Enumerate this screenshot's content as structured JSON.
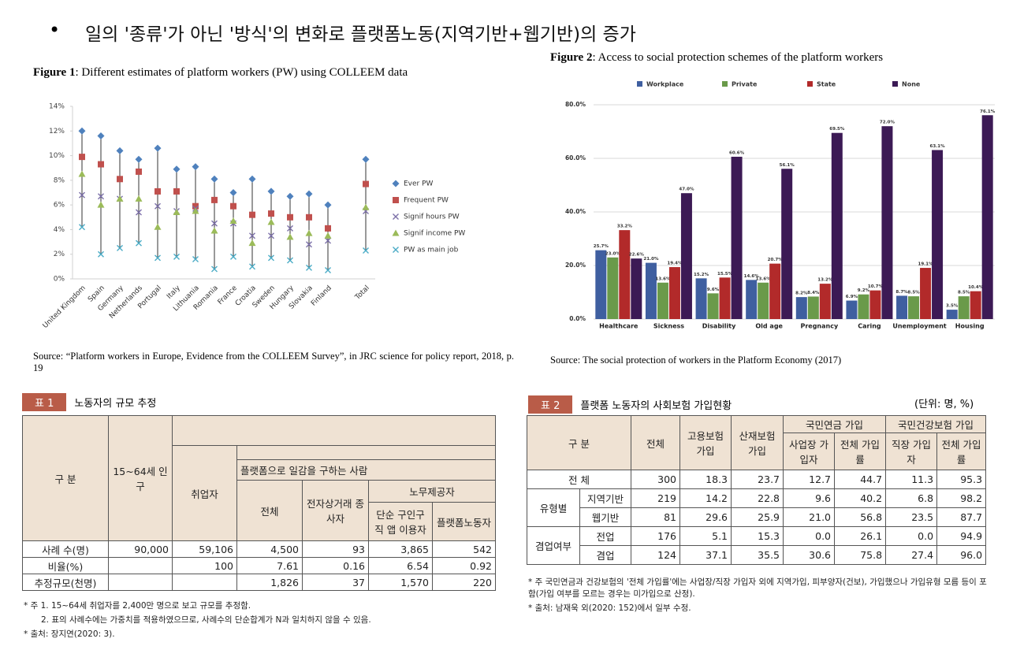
{
  "headline": "일의 '종류'가 아닌 '방식'의 변화로 플랫폼노동(지역기반+웹기반)의 증가",
  "chart_data": [
    {
      "type": "dot",
      "title_label": "Figure 1",
      "title": ": Different estimates of platform workers (PW) using COLLEEM data",
      "source": "Source: “Platform workers in Europe, Evidence from the COLLEEM Survey”, in JRC science for policy report, 2018, p. 19",
      "categories": [
        "United Kingdom",
        "Spain",
        "Germany",
        "Netherlands",
        "Portugal",
        "Italy",
        "Lithuania",
        "Romania",
        "France",
        "Croatia",
        "Sweden",
        "Hungary",
        "Slovakia",
        "Finland",
        null,
        "Total"
      ],
      "series": [
        {
          "name": "Ever PW",
          "color": "#4f81bd",
          "marker": "diamond",
          "values": [
            12.0,
            11.6,
            10.4,
            9.7,
            10.6,
            8.9,
            9.1,
            8.1,
            7.0,
            8.1,
            7.1,
            6.7,
            6.9,
            6.0,
            null,
            9.7
          ]
        },
        {
          "name": "Frequent PW",
          "color": "#c0504d",
          "marker": "square",
          "values": [
            9.9,
            9.3,
            8.1,
            8.7,
            7.1,
            7.1,
            5.9,
            6.4,
            5.9,
            5.2,
            5.3,
            5.0,
            5.0,
            4.1,
            null,
            7.7
          ]
        },
        {
          "name": "Signif hours PW",
          "color": "#7b6fa8",
          "marker": "cross",
          "values": [
            6.8,
            6.7,
            6.5,
            5.4,
            5.9,
            5.5,
            5.7,
            4.5,
            4.5,
            3.5,
            3.5,
            4.1,
            2.8,
            3.1,
            null,
            5.5
          ]
        },
        {
          "name": "Signif income PW",
          "color": "#9bbb59",
          "marker": "triangle",
          "values": [
            8.5,
            6.0,
            6.5,
            6.5,
            4.2,
            5.4,
            5.5,
            3.9,
            4.7,
            2.9,
            4.6,
            3.4,
            3.7,
            3.5,
            null,
            5.8
          ]
        },
        {
          "name": "PW as main job",
          "color": "#4bacc6",
          "marker": "cross",
          "values": [
            4.2,
            2.0,
            2.5,
            2.9,
            1.7,
            1.8,
            1.6,
            0.8,
            1.8,
            1.0,
            1.7,
            1.5,
            0.9,
            0.7,
            null,
            2.3
          ]
        }
      ],
      "ylim": [
        0,
        14
      ],
      "yticks": [
        {
          "value": 0,
          "label": "0%"
        },
        {
          "value": 2,
          "label": "2%"
        },
        {
          "value": 4,
          "label": "4%"
        },
        {
          "value": 6,
          "label": "6%"
        },
        {
          "value": 8,
          "label": "8%"
        },
        {
          "value": 10,
          "label": "10%"
        },
        {
          "value": 12,
          "label": "12%"
        },
        {
          "value": 14,
          "label": "14%"
        }
      ],
      "legend": "right"
    },
    {
      "type": "bar",
      "title_label": "Figure 2",
      "title": ": Access to social protection schemes of the platform workers",
      "source": "Source: The social protection of workers in the Platform Economy (2017)",
      "categories": [
        "Healthcare",
        "Sickness",
        "Disability",
        "Old age",
        "Pregnancy",
        "Caring",
        "Unemployment",
        "Housing"
      ],
      "series": [
        {
          "name": "Workplace",
          "color": "#3f5fa0",
          "values": [
            25.7,
            21.0,
            15.2,
            14.6,
            8.2,
            6.9,
            8.7,
            3.5
          ],
          "value_labels": [
            "25.7%",
            "21.0%",
            "15.2%",
            "14.6%",
            "8.2%",
            "6.9%",
            "8.7%",
            "3.5%"
          ]
        },
        {
          "name": "Private",
          "color": "#6a9a4a",
          "values": [
            23.0,
            13.6,
            9.6,
            13.6,
            8.4,
            9.2,
            8.5,
            8.5
          ],
          "value_labels": [
            "23.0%",
            "13.6%",
            "9.6%",
            "13.6%",
            "8.4%",
            "9.2%",
            "8.5%",
            "8.5%"
          ]
        },
        {
          "name": "State",
          "color": "#b22a2a",
          "values": [
            33.2,
            19.4,
            15.5,
            20.7,
            13.2,
            10.7,
            19.1,
            10.4
          ],
          "value_labels": [
            "33.2%",
            "19.4%",
            "15.5%",
            "20.7%",
            "13.2%",
            "10.7%",
            "19.1%",
            "10.4%"
          ]
        },
        {
          "name": "None",
          "color": "#3c1a55",
          "values": [
            22.6,
            47.0,
            60.6,
            56.1,
            69.5,
            72.0,
            63.1,
            76.1
          ],
          "value_labels": [
            "22.6%",
            "47.0%",
            "60.6%",
            "56.1%",
            "69.5%",
            "72.0%",
            "63.1%",
            "76.1%"
          ]
        }
      ],
      "ylim": [
        0,
        80
      ],
      "yticks": [
        {
          "value": 0,
          "label": "0.0%"
        },
        {
          "value": 20,
          "label": "20.0%"
        },
        {
          "value": 40,
          "label": "40.0%"
        },
        {
          "value": 60,
          "label": "60.0%"
        },
        {
          "value": 80,
          "label": "80.0%"
        }
      ],
      "grid": true,
      "legend": "top"
    }
  ],
  "tables": [
    {
      "tag": "표 1",
      "title": "노동자의 규모 추정",
      "header": [
        "구 분",
        "15~64세 인구",
        "취업자",
        "플랫폼으로 일감을 구하는 사람",
        "전체",
        "전자상거래 종사자",
        "노무제공자",
        "단순 구인구직 앱 이용자",
        "플랫폼노동자"
      ],
      "rows": [
        {
          "label": "사례 수(명)",
          "values": [
            "90,000",
            "59,106",
            "4,500",
            "93",
            "3,865",
            "542"
          ]
        },
        {
          "label": "비율(%)",
          "values": [
            null,
            "100",
            "7.61",
            "0.16",
            "6.54",
            "0.92"
          ]
        },
        {
          "label": "추정규모(천명)",
          "values": [
            null,
            null,
            "1,826",
            "37",
            "1,570",
            "220"
          ]
        }
      ],
      "notes": [
        "* 주 1. 15~64세 취업자를 2,400만 명으로 보고 규모를 추정함.",
        "2. 표의 사례수에는 가중치를 적용하였으므로, 사례수의 단순합계가 N과 일치하지 않을 수 있음.",
        "* 출처: 장지연(2020: 3)."
      ]
    },
    {
      "tag": "표 2",
      "title": "플랫폼 노동자의 사회보험 가입현황",
      "unit": "(단위: 명, %)",
      "header": [
        "구 분",
        "전체",
        "고용보험 가입",
        "산재보험 가입",
        "국민연금 가입",
        "사업장 가입자",
        "전체 가입률",
        "국민건강보험 가입",
        "직장 가입자",
        "전체 가입률"
      ],
      "rows": [
        {
          "label": "전 체",
          "values": [
            "300",
            "18.3",
            "23.7",
            "12.7",
            "44.7",
            "11.3",
            "95.3"
          ]
        },
        {
          "group": "유형별",
          "label": "지역기반",
          "values": [
            "219",
            "14.2",
            "22.8",
            "9.6",
            "40.2",
            "6.8",
            "98.2"
          ]
        },
        {
          "label": "웹기반",
          "values": [
            "81",
            "29.6",
            "25.9",
            "21.0",
            "56.8",
            "23.5",
            "87.7"
          ]
        },
        {
          "group": "겸업여부",
          "label": "전업",
          "values": [
            "176",
            "5.1",
            "15.3",
            "0.0",
            "26.1",
            "0.0",
            "94.9"
          ]
        },
        {
          "label": "겸업",
          "values": [
            "124",
            "37.1",
            "35.5",
            "30.6",
            "75.8",
            "27.4",
            "96.0"
          ]
        }
      ],
      "notes": [
        "* 주 국민연금과 건강보험의 '전체 가입률'에는 사업장/직장 가입자 외에 지역가입, 피부양자(건보), 가입했으나 가입유형 모름 등이 포함(가입 여부를 모르는 경우는 미가입으로 산정).",
        "* 출처: 남재욱 외(2020: 152)에서 일부 수정."
      ]
    }
  ]
}
